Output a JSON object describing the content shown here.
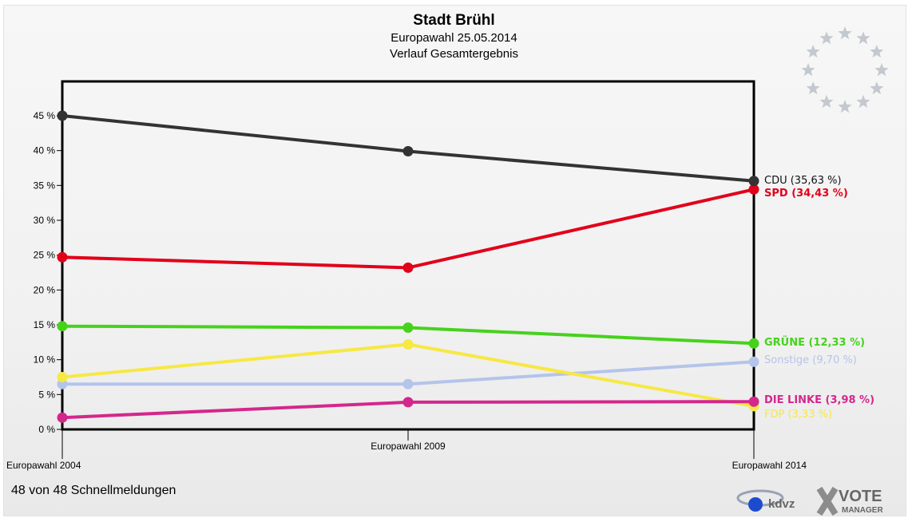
{
  "header": {
    "title": "Stadt Brühl",
    "subtitle": "Europawahl 25.05.2014",
    "subtitle2": "Verlauf Gesamtergebnis"
  },
  "footer": {
    "note": "48 von 48 Schnellmeldungen",
    "logo_kdvz": "kdvz",
    "logo_vote": "VOTE",
    "logo_manager": "MANAGER"
  },
  "chart_data": {
    "type": "line",
    "title": "Stadt Brühl",
    "subtitle": "Europawahl 25.05.2014 – Verlauf Gesamtergebnis",
    "categories": [
      "Europawahl 2004",
      "Europawahl 2009",
      "Europawahl 2014"
    ],
    "ylim": [
      0,
      45
    ],
    "yticks": [
      "0 %",
      "5 %",
      "10 %",
      "15 %",
      "20 %",
      "25 %",
      "30 %",
      "35 %",
      "40 %",
      "45 %"
    ],
    "grid": false,
    "series": [
      {
        "name": "CDU",
        "label": "CDU (35,63 %)",
        "color": "#333333",
        "values": [
          45.0,
          39.9,
          35.63
        ]
      },
      {
        "name": "SPD",
        "label": "SPD (34,43 %)",
        "color": "#e2001a",
        "values": [
          24.7,
          23.2,
          34.43
        ]
      },
      {
        "name": "GRÜNE",
        "label": "GRÜNE (12,33 %)",
        "color": "#46d21c",
        "values": [
          14.8,
          14.6,
          12.33
        ]
      },
      {
        "name": "Sonstige",
        "label": "Sonstige (9,70 %)",
        "color": "#b4c4ea",
        "values": [
          6.5,
          6.5,
          9.7
        ]
      },
      {
        "name": "FDP",
        "label": "FDP (3,33 %)",
        "color": "#f7e843",
        "values": [
          7.5,
          12.2,
          3.33
        ]
      },
      {
        "name": "DIE LINKE",
        "label": "DIE LINKE (3,98 %)",
        "color": "#d4278c",
        "values": [
          1.7,
          3.9,
          3.98
        ]
      }
    ]
  }
}
